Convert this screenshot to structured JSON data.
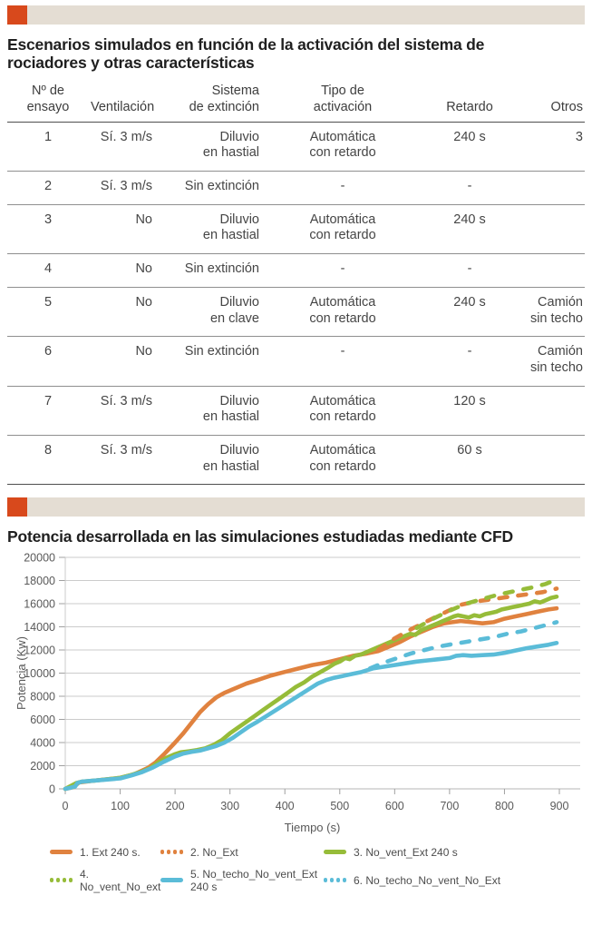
{
  "colors": {
    "accent": "#d8491c",
    "tan_bar": "#e4ddd3",
    "orange": "#e0823f",
    "green": "#96bc39",
    "blue": "#5bbcd8",
    "grid": "#cbcbcb",
    "axis_text": "#595959"
  },
  "section_table": {
    "title": "Escenarios simulados en función de la activación del sistema de rociadores y otras características",
    "columns": [
      "Nº de\nensayo",
      "Ventilación",
      "Sistema\nde extinción",
      "Tipo de\nactivación",
      "Retardo",
      "Otros"
    ],
    "rows": [
      [
        "1",
        "Sí. 3 m/s",
        "Diluvio\nen hastial",
        "Automática\ncon retardo",
        "240 s",
        "3"
      ],
      [
        "2",
        "Sí. 3 m/s",
        "Sin extinción",
        "-",
        "-",
        ""
      ],
      [
        "3",
        "No",
        "Diluvio\nen hastial",
        "Automática\ncon retardo",
        "240 s",
        ""
      ],
      [
        "4",
        "No",
        "Sin extinción",
        "-",
        "-",
        ""
      ],
      [
        "5",
        "No",
        "Diluvio\nen clave",
        "Automática\ncon retardo",
        "240 s",
        "Camión\nsin techo"
      ],
      [
        "6",
        "No",
        "Sin extinción",
        "-",
        "-",
        "Camión\nsin techo"
      ],
      [
        "7",
        "Sí. 3 m/s",
        "Diluvio\nen hastial",
        "Automática\ncon retardo",
        "120 s",
        ""
      ],
      [
        "8",
        "Sí. 3 m/s",
        "Diluvio\nen hastial",
        "Automática\ncon retardo",
        "60 s",
        ""
      ]
    ]
  },
  "section_chart": {
    "title": "Potencia desarrollada en las simulaciones estudiadas mediante CFD"
  },
  "chart_data": {
    "type": "line",
    "title": "Potencia desarrollada en las simulaciones estudiadas mediante CFD",
    "xlabel": "Tiempo (s)",
    "ylabel": "Potencia (Kw)",
    "xlim": [
      0,
      900
    ],
    "ylim": [
      0,
      20000
    ],
    "xticks": [
      0,
      100,
      200,
      300,
      400,
      500,
      600,
      700,
      800,
      900
    ],
    "yticks": [
      0,
      2000,
      4000,
      6000,
      8000,
      10000,
      12000,
      14000,
      16000,
      18000,
      20000
    ],
    "grid": "horizontal",
    "legend_position": "bottom",
    "series": [
      {
        "name": "1. Ext 240 s.",
        "color": "#e0823f",
        "dash": false,
        "points": [
          [
            0,
            0
          ],
          [
            15,
            150
          ],
          [
            25,
            550
          ],
          [
            50,
            700
          ],
          [
            75,
            820
          ],
          [
            100,
            950
          ],
          [
            125,
            1250
          ],
          [
            150,
            1800
          ],
          [
            165,
            2300
          ],
          [
            180,
            3000
          ],
          [
            200,
            4000
          ],
          [
            215,
            4800
          ],
          [
            230,
            5700
          ],
          [
            245,
            6600
          ],
          [
            260,
            7300
          ],
          [
            275,
            7900
          ],
          [
            290,
            8300
          ],
          [
            310,
            8700
          ],
          [
            330,
            9100
          ],
          [
            350,
            9400
          ],
          [
            375,
            9800
          ],
          [
            400,
            10100
          ],
          [
            425,
            10400
          ],
          [
            450,
            10700
          ],
          [
            475,
            10900
          ],
          [
            500,
            11200
          ],
          [
            525,
            11500
          ],
          [
            550,
            11700
          ],
          [
            570,
            11900
          ],
          [
            590,
            12300
          ],
          [
            610,
            12700
          ],
          [
            630,
            13200
          ],
          [
            650,
            13600
          ],
          [
            670,
            14000
          ],
          [
            690,
            14300
          ],
          [
            705,
            14400
          ],
          [
            720,
            14500
          ],
          [
            740,
            14400
          ],
          [
            760,
            14300
          ],
          [
            780,
            14400
          ],
          [
            800,
            14700
          ],
          [
            820,
            14900
          ],
          [
            840,
            15100
          ],
          [
            860,
            15300
          ],
          [
            880,
            15500
          ],
          [
            895,
            15600
          ]
        ]
      },
      {
        "name": "2. No_Ext",
        "color": "#e0823f",
        "dash": true,
        "points": [
          [
            570,
            12000
          ],
          [
            600,
            13000
          ],
          [
            630,
            13800
          ],
          [
            660,
            14500
          ],
          [
            690,
            15200
          ],
          [
            720,
            15900
          ],
          [
            750,
            16200
          ],
          [
            780,
            16400
          ],
          [
            810,
            16600
          ],
          [
            840,
            16800
          ],
          [
            870,
            17000
          ],
          [
            895,
            17300
          ]
        ]
      },
      {
        "name": "3. No_vent_Ext 240 s",
        "color": "#96bc39",
        "dash": false,
        "points": [
          [
            0,
            0
          ],
          [
            20,
            500
          ],
          [
            30,
            620
          ],
          [
            50,
            700
          ],
          [
            75,
            820
          ],
          [
            100,
            950
          ],
          [
            120,
            1200
          ],
          [
            140,
            1500
          ],
          [
            155,
            1800
          ],
          [
            170,
            2300
          ],
          [
            185,
            2700
          ],
          [
            200,
            3000
          ],
          [
            210,
            3150
          ],
          [
            225,
            3250
          ],
          [
            240,
            3350
          ],
          [
            255,
            3500
          ],
          [
            270,
            3800
          ],
          [
            285,
            4200
          ],
          [
            300,
            4800
          ],
          [
            315,
            5300
          ],
          [
            330,
            5800
          ],
          [
            345,
            6300
          ],
          [
            360,
            6800
          ],
          [
            375,
            7300
          ],
          [
            390,
            7800
          ],
          [
            405,
            8300
          ],
          [
            420,
            8800
          ],
          [
            435,
            9200
          ],
          [
            450,
            9700
          ],
          [
            465,
            10100
          ],
          [
            480,
            10500
          ],
          [
            490,
            10800
          ],
          [
            500,
            11000
          ],
          [
            510,
            11300
          ],
          [
            518,
            11200
          ],
          [
            528,
            11500
          ],
          [
            538,
            11600
          ],
          [
            548,
            11800
          ],
          [
            558,
            12000
          ],
          [
            568,
            12200
          ],
          [
            578,
            12400
          ],
          [
            588,
            12600
          ],
          [
            598,
            12800
          ],
          [
            608,
            13000
          ],
          [
            618,
            13200
          ],
          [
            628,
            13400
          ],
          [
            638,
            13300
          ],
          [
            648,
            13700
          ],
          [
            658,
            13900
          ],
          [
            668,
            14100
          ],
          [
            678,
            14300
          ],
          [
            688,
            14500
          ],
          [
            698,
            14700
          ],
          [
            708,
            14900
          ],
          [
            715,
            15000
          ],
          [
            725,
            14900
          ],
          [
            735,
            14800
          ],
          [
            745,
            15000
          ],
          [
            755,
            14900
          ],
          [
            765,
            15100
          ],
          [
            775,
            15200
          ],
          [
            785,
            15300
          ],
          [
            795,
            15500
          ],
          [
            805,
            15600
          ],
          [
            815,
            15700
          ],
          [
            825,
            15800
          ],
          [
            835,
            15900
          ],
          [
            845,
            16000
          ],
          [
            855,
            16200
          ],
          [
            865,
            16100
          ],
          [
            875,
            16300
          ],
          [
            885,
            16500
          ],
          [
            895,
            16600
          ]
        ]
      },
      {
        "name": "4. No_vent_No_ext",
        "color": "#96bc39",
        "dash": true,
        "points": [
          [
            640,
            13900
          ],
          [
            670,
            14700
          ],
          [
            700,
            15400
          ],
          [
            730,
            16000
          ],
          [
            760,
            16400
          ],
          [
            790,
            16800
          ],
          [
            820,
            17100
          ],
          [
            850,
            17400
          ],
          [
            875,
            17700
          ],
          [
            895,
            18100
          ]
        ]
      },
      {
        "name": "5. No_techo_No_vent_Ext 240 s",
        "color": "#5bbcd8",
        "dash": false,
        "points": [
          [
            0,
            0
          ],
          [
            8,
            80
          ],
          [
            18,
            200
          ],
          [
            22,
            500
          ],
          [
            30,
            620
          ],
          [
            50,
            700
          ],
          [
            75,
            800
          ],
          [
            100,
            900
          ],
          [
            120,
            1150
          ],
          [
            140,
            1450
          ],
          [
            160,
            1850
          ],
          [
            180,
            2350
          ],
          [
            200,
            2800
          ],
          [
            215,
            3050
          ],
          [
            230,
            3200
          ],
          [
            245,
            3300
          ],
          [
            260,
            3500
          ],
          [
            275,
            3700
          ],
          [
            290,
            4000
          ],
          [
            305,
            4400
          ],
          [
            320,
            4900
          ],
          [
            335,
            5400
          ],
          [
            350,
            5800
          ],
          [
            370,
            6400
          ],
          [
            390,
            7000
          ],
          [
            410,
            7600
          ],
          [
            430,
            8200
          ],
          [
            450,
            8800
          ],
          [
            460,
            9100
          ],
          [
            475,
            9400
          ],
          [
            490,
            9600
          ],
          [
            505,
            9750
          ],
          [
            520,
            9900
          ],
          [
            540,
            10100
          ],
          [
            560,
            10400
          ],
          [
            580,
            10550
          ],
          [
            600,
            10700
          ],
          [
            620,
            10850
          ],
          [
            640,
            11000
          ],
          [
            660,
            11100
          ],
          [
            680,
            11200
          ],
          [
            700,
            11300
          ],
          [
            712,
            11500
          ],
          [
            725,
            11550
          ],
          [
            740,
            11500
          ],
          [
            760,
            11550
          ],
          [
            780,
            11600
          ],
          [
            800,
            11750
          ],
          [
            820,
            11950
          ],
          [
            840,
            12150
          ],
          [
            860,
            12300
          ],
          [
            880,
            12450
          ],
          [
            895,
            12600
          ]
        ]
      },
      {
        "name": "6. No_techo_No_vent_No_Ext",
        "color": "#5bbcd8",
        "dash": true,
        "points": [
          [
            555,
            10400
          ],
          [
            580,
            10900
          ],
          [
            605,
            11300
          ],
          [
            630,
            11700
          ],
          [
            655,
            12000
          ],
          [
            680,
            12300
          ],
          [
            705,
            12500
          ],
          [
            730,
            12700
          ],
          [
            755,
            12900
          ],
          [
            780,
            13100
          ],
          [
            805,
            13400
          ],
          [
            830,
            13600
          ],
          [
            855,
            13900
          ],
          [
            880,
            14200
          ],
          [
            895,
            14400
          ]
        ]
      }
    ]
  }
}
